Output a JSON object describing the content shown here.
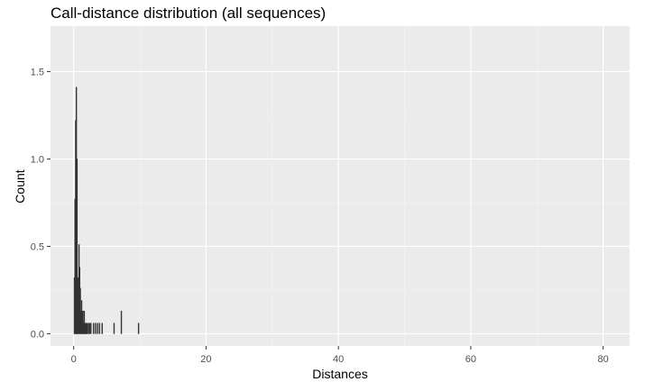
{
  "chart_data": {
    "type": "bar",
    "title": "Call-distance distribution (all sequences)",
    "xlabel": "Distances",
    "ylabel": "Count",
    "xlim": [
      -3.5,
      84
    ],
    "ylim": [
      -0.07,
      1.76
    ],
    "x_ticks": [
      0,
      20,
      40,
      60,
      80
    ],
    "y_ticks": [
      0.0,
      0.5,
      1.0,
      1.5
    ],
    "y_tick_labels": [
      "0.0",
      "0.5",
      "1.0",
      "1.5"
    ],
    "x": [
      0.1,
      0.2,
      0.3,
      0.4,
      0.5,
      0.6,
      0.7,
      0.8,
      0.9,
      1.0,
      1.1,
      1.2,
      1.3,
      1.4,
      1.5,
      1.6,
      1.7,
      1.8,
      1.9,
      2.0,
      2.2,
      2.4,
      2.6,
      3.0,
      3.3,
      3.6,
      3.9,
      4.3,
      6.1,
      7.2,
      9.8
    ],
    "values": [
      0.32,
      0.77,
      1.22,
      1.41,
      1.0,
      0.32,
      0.32,
      0.51,
      0.38,
      0.26,
      0.13,
      0.19,
      0.13,
      0.13,
      0.06,
      0.13,
      0.06,
      0.06,
      0.06,
      0.06,
      0.06,
      0.06,
      0.06,
      0.06,
      0.06,
      0.06,
      0.06,
      0.06,
      0.06,
      0.13,
      0.06
    ],
    "bar_color": "#333333",
    "panel_background": "#ebebeb",
    "grid": true
  }
}
